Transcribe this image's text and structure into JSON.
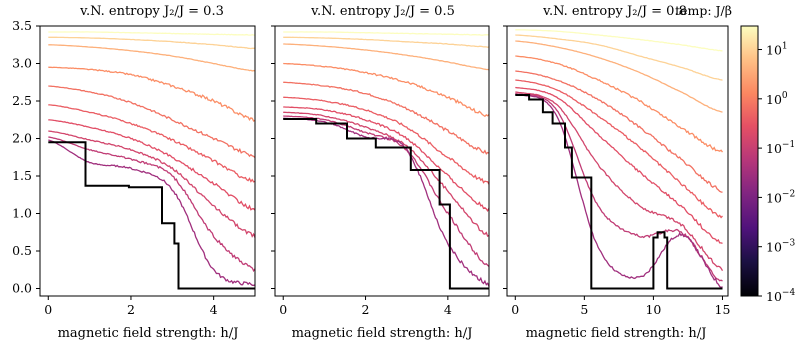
{
  "chart_data": [
    {
      "type": "line",
      "title": "v.N. entropy J₂/J = 0.3",
      "xlabel": "magnetic field strength: h/J",
      "ylabel": "",
      "xlim": [
        -0.2,
        5.0
      ],
      "ylim": [
        -0.1,
        3.5
      ],
      "xticks": [
        "0",
        "2",
        "4"
      ],
      "yticks": [
        "0.0",
        "0.5",
        "1.0",
        "1.5",
        "2.0",
        "2.5",
        "3.0",
        "3.5"
      ],
      "grid": false,
      "zero_temperature_curve": {
        "x": [
          0,
          0.9,
          0.9,
          1.95,
          1.95,
          2.75,
          2.75,
          3.05,
          3.05,
          3.15,
          3.15,
          5.0
        ],
        "y": [
          1.95,
          1.95,
          1.37,
          1.37,
          1.35,
          1.35,
          0.87,
          0.87,
          0.6,
          0.6,
          0.0,
          0.0
        ]
      },
      "finite_temperature_curves": [
        {
          "T": 30,
          "x": [
            0,
            1,
            2,
            3,
            4,
            5
          ],
          "y": [
            3.42,
            3.42,
            3.41,
            3.4,
            3.39,
            3.38
          ]
        },
        {
          "T": 10,
          "x": [
            0,
            1,
            2,
            3,
            4,
            5
          ],
          "y": [
            3.35,
            3.34,
            3.32,
            3.29,
            3.25,
            3.2
          ]
        },
        {
          "T": 4,
          "x": [
            0,
            1,
            2,
            3,
            4,
            5
          ],
          "y": [
            3.25,
            3.22,
            3.17,
            3.1,
            3.0,
            2.9
          ]
        },
        {
          "T": 1.5,
          "x": [
            0,
            1,
            2,
            3,
            4,
            5
          ],
          "y": [
            2.95,
            2.92,
            2.85,
            2.7,
            2.5,
            2.25
          ]
        },
        {
          "T": 0.7,
          "x": [
            0,
            1,
            2,
            3,
            4,
            5
          ],
          "y": [
            2.7,
            2.62,
            2.48,
            2.25,
            2.0,
            1.77
          ]
        },
        {
          "T": 0.4,
          "x": [
            0,
            1,
            2,
            3,
            4,
            5
          ],
          "y": [
            2.45,
            2.35,
            2.2,
            1.98,
            1.7,
            1.42
          ]
        },
        {
          "T": 0.25,
          "x": [
            0,
            1,
            2,
            3,
            4,
            5
          ],
          "y": [
            2.25,
            2.15,
            2.0,
            1.75,
            1.4,
            1.05
          ]
        },
        {
          "T": 0.15,
          "x": [
            0,
            1,
            2,
            3,
            4,
            5
          ],
          "y": [
            2.1,
            1.98,
            1.85,
            1.6,
            1.1,
            0.7
          ]
        },
        {
          "T": 0.08,
          "x": [
            0,
            1,
            2,
            3,
            4,
            5
          ],
          "y": [
            2.02,
            1.85,
            1.72,
            1.5,
            0.7,
            0.25
          ]
        },
        {
          "T": 0.03,
          "x": [
            0,
            1,
            2,
            3,
            4,
            5
          ],
          "y": [
            1.98,
            1.68,
            1.6,
            1.32,
            0.25,
            0.05
          ]
        }
      ]
    },
    {
      "type": "line",
      "title": "v.N. entropy J₂/J = 0.5",
      "xlabel": "magnetic field strength: h/J",
      "ylabel": "",
      "xlim": [
        -0.2,
        5.0
      ],
      "ylim": [
        -0.1,
        3.5
      ],
      "xticks": [
        "0",
        "2",
        "4"
      ],
      "grid": false,
      "zero_temperature_curve": {
        "x": [
          0,
          0.8,
          0.8,
          1.55,
          1.55,
          2.25,
          2.25,
          3.1,
          3.1,
          3.8,
          3.8,
          4.05,
          4.05,
          5.0
        ],
        "y": [
          2.26,
          2.26,
          2.2,
          2.2,
          2.0,
          2.0,
          1.88,
          1.88,
          1.58,
          1.58,
          1.12,
          1.12,
          0.0,
          0.0
        ]
      },
      "finite_temperature_curves": [
        {
          "T": 30,
          "x": [
            0,
            1,
            2,
            3,
            4,
            5
          ],
          "y": [
            3.42,
            3.42,
            3.41,
            3.4,
            3.39,
            3.38
          ]
        },
        {
          "T": 10,
          "x": [
            0,
            1,
            2,
            3,
            4,
            5
          ],
          "y": [
            3.35,
            3.34,
            3.32,
            3.29,
            3.26,
            3.22
          ]
        },
        {
          "T": 4,
          "x": [
            0,
            1,
            2,
            3,
            4,
            5
          ],
          "y": [
            3.26,
            3.23,
            3.18,
            3.11,
            3.02,
            2.92
          ]
        },
        {
          "T": 1.5,
          "x": [
            0,
            1,
            2,
            3,
            4,
            5
          ],
          "y": [
            3.0,
            2.96,
            2.88,
            2.75,
            2.55,
            2.3
          ]
        },
        {
          "T": 0.7,
          "x": [
            0,
            1,
            2,
            3,
            4,
            5
          ],
          "y": [
            2.75,
            2.7,
            2.6,
            2.4,
            2.1,
            1.8
          ]
        },
        {
          "T": 0.4,
          "x": [
            0,
            1,
            2,
            3,
            4,
            5
          ],
          "y": [
            2.55,
            2.5,
            2.38,
            2.15,
            1.75,
            1.4
          ]
        },
        {
          "T": 0.25,
          "x": [
            0,
            1,
            2,
            3,
            4,
            5
          ],
          "y": [
            2.42,
            2.38,
            2.25,
            2.0,
            1.5,
            1.05
          ]
        },
        {
          "T": 0.15,
          "x": [
            0,
            1,
            2,
            3,
            4,
            5
          ],
          "y": [
            2.35,
            2.3,
            2.15,
            1.9,
            1.3,
            0.7
          ]
        },
        {
          "T": 0.08,
          "x": [
            0,
            1,
            2,
            3,
            4,
            5
          ],
          "y": [
            2.3,
            2.25,
            2.08,
            1.85,
            1.0,
            0.3
          ]
        },
        {
          "T": 0.03,
          "x": [
            0,
            1,
            2,
            3,
            4,
            5
          ],
          "y": [
            2.27,
            2.22,
            2.02,
            1.85,
            0.6,
            0.05
          ]
        }
      ]
    },
    {
      "type": "line",
      "title": "v.N. entropy J₂/J = 0.8",
      "xlabel": "magnetic field strength: h/J",
      "ylabel": "",
      "xlim": [
        -0.6,
        15.4
      ],
      "ylim": [
        -0.1,
        3.5
      ],
      "xticks": [
        "0",
        "5",
        "10",
        "15"
      ],
      "grid": false,
      "zero_temperature_curve": {
        "x": [
          0,
          1.0,
          1.0,
          2.0,
          2.0,
          2.7,
          2.7,
          3.6,
          3.6,
          4.1,
          4.1,
          5.5,
          5.5,
          10.0,
          10.0,
          10.3,
          10.3,
          10.8,
          10.8,
          11.0,
          11.0,
          15.0
        ],
        "y": [
          2.58,
          2.58,
          2.52,
          2.52,
          2.35,
          2.35,
          2.2,
          2.2,
          1.88,
          1.88,
          1.48,
          1.48,
          0.0,
          0.0,
          0.68,
          0.68,
          0.75,
          0.75,
          0.68,
          0.68,
          0.0,
          0.0
        ]
      },
      "finite_temperature_curves": [
        {
          "T": 30,
          "x": [
            0,
            3,
            6,
            9,
            12,
            15
          ],
          "y": [
            3.45,
            3.43,
            3.38,
            3.32,
            3.25,
            3.17
          ]
        },
        {
          "T": 10,
          "x": [
            0,
            3,
            6,
            9,
            12,
            15
          ],
          "y": [
            3.38,
            3.33,
            3.25,
            3.1,
            2.95,
            2.78
          ]
        },
        {
          "T": 4,
          "x": [
            0,
            3,
            6,
            9,
            12,
            15
          ],
          "y": [
            3.3,
            3.22,
            3.08,
            2.88,
            2.62,
            2.35
          ]
        },
        {
          "T": 1.5,
          "x": [
            0,
            3,
            6,
            9,
            12,
            15
          ],
          "y": [
            3.1,
            3.0,
            2.78,
            2.5,
            2.15,
            1.82
          ]
        },
        {
          "T": 0.7,
          "x": [
            0,
            3,
            6,
            9,
            12,
            15
          ],
          "y": [
            2.9,
            2.78,
            2.52,
            2.15,
            1.72,
            1.3
          ]
        },
        {
          "T": 0.4,
          "x": [
            0,
            3,
            6,
            9,
            12,
            15
          ],
          "y": [
            2.78,
            2.65,
            2.3,
            1.88,
            1.4,
            0.95
          ]
        },
        {
          "T": 0.25,
          "x": [
            0,
            3,
            6,
            9,
            12,
            15
          ],
          "y": [
            2.68,
            2.55,
            2.05,
            1.55,
            1.1,
            0.6
          ]
        },
        {
          "T": 0.15,
          "x": [
            0,
            3,
            6,
            9,
            12,
            15
          ],
          "y": [
            2.62,
            2.45,
            1.65,
            1.1,
            0.85,
            0.25
          ]
        },
        {
          "T": 0.08,
          "x": [
            0,
            3,
            6,
            9,
            12,
            15
          ],
          "y": [
            2.6,
            2.38,
            1.1,
            0.7,
            0.75,
            0.08
          ]
        },
        {
          "T": 0.03,
          "x": [
            0,
            3,
            6,
            9,
            12,
            15
          ],
          "y": [
            2.59,
            2.3,
            0.55,
            0.15,
            0.72,
            0.02
          ]
        }
      ]
    }
  ],
  "colorbar": {
    "label": "temp: J/β",
    "scale": "log",
    "min": "1e-4",
    "max": "30",
    "ticks": [
      {
        "base": "10",
        "exp": "1"
      },
      {
        "base": "10",
        "exp": "0"
      },
      {
        "base": "10",
        "exp": "−1"
      },
      {
        "base": "10",
        "exp": "−2"
      },
      {
        "base": "10",
        "exp": "−3"
      },
      {
        "base": "10",
        "exp": "−4"
      }
    ],
    "colormap": "magma"
  },
  "colors": {
    "zero_temperature": "#000000",
    "axis": "#000000",
    "background": "#ffffff"
  }
}
